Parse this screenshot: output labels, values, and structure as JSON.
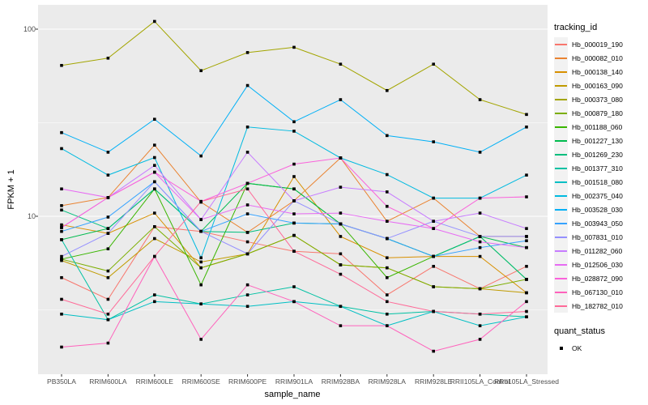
{
  "chart_data": {
    "type": "line",
    "title": "",
    "xlabel": "sample_name",
    "ylabel": "FPKM + 1",
    "y_scale": "log10",
    "y_tick_labels": [
      "100",
      "10"
    ],
    "y_tick_values": [
      100,
      10
    ],
    "y_minor_values": [
      31.623,
      3.1623
    ],
    "ylim": [
      1.7,
      130
    ],
    "grid": true,
    "panel_bg": "#EBEBEB",
    "grid_color": "#FFFFFF",
    "point_marker": "black-square",
    "legend_title": "tracking_id",
    "legend_position": "right",
    "categories": [
      "PB350LA",
      "RRIM600LA",
      "RRIM600LE",
      "RRIM600SE",
      "RRIM600PE",
      "RRIM901LA",
      "RRIM928BA",
      "RRIM928LA",
      "RRIM928LE",
      "RRII105LA_Control",
      "RRII105LA_Stressed"
    ],
    "series": [
      {
        "name": "Hb_000019_190",
        "color": "#F8766D",
        "values": [
          4.7,
          3.6,
          8.8,
          8.3,
          7.3,
          6.5,
          6.3,
          3.8,
          5.4,
          4.1,
          5.4
        ]
      },
      {
        "name": "Hb_000082_010",
        "color": "#EA8331",
        "values": [
          11.4,
          12.6,
          24,
          11.9,
          8.2,
          12.1,
          20.5,
          9.4,
          12.5,
          7.8,
          7.8
        ]
      },
      {
        "name": "Hb_000138_140",
        "color": "#D89000",
        "values": [
          9.0,
          8.1,
          10.4,
          5.3,
          6.3,
          16.3,
          7.8,
          6.0,
          6.1,
          6.1,
          3.9
        ]
      },
      {
        "name": "Hb_000163_090",
        "color": "#C09B00",
        "values": [
          5.8,
          4.7,
          7.6,
          5.7,
          6.3,
          7.9,
          5.5,
          5.3,
          4.2,
          4.1,
          3.9
        ]
      },
      {
        "name": "Hb_000373_080",
        "color": "#A3A500",
        "values": [
          64,
          70,
          110,
          60,
          75,
          80,
          65,
          47,
          65,
          42,
          35
        ]
      },
      {
        "name": "Hb_000879_180",
        "color": "#7CAE00",
        "values": [
          5.9,
          5.1,
          8.8,
          5.3,
          6.3,
          7.9,
          5.5,
          5.3,
          4.2,
          4.1,
          4.6
        ]
      },
      {
        "name": "Hb_001188_060",
        "color": "#39B600",
        "values": [
          5.9,
          6.7,
          14,
          4.3,
          15,
          14,
          9.1,
          4.7,
          6.1,
          7.8,
          4.6
        ]
      },
      {
        "name": "Hb_001227_130",
        "color": "#00BB4E",
        "values": [
          7.5,
          8.6,
          14,
          8.3,
          15,
          14,
          9.1,
          7.6,
          6.1,
          7.8,
          6.8
        ]
      },
      {
        "name": "Hb_001269_230",
        "color": "#00BF7D",
        "values": [
          10.8,
          8.6,
          14,
          8.3,
          8.2,
          9.2,
          9.1,
          7.6,
          6.1,
          7.8,
          4.6
        ]
      },
      {
        "name": "Hb_001377_310",
        "color": "#00C1A3",
        "values": [
          7.5,
          2.8,
          3.8,
          3.4,
          3.8,
          4.2,
          3.3,
          3.0,
          3.1,
          3.0,
          2.9
        ]
      },
      {
        "name": "Hb_001518_080",
        "color": "#00BFC4",
        "values": [
          3.0,
          2.8,
          3.5,
          3.4,
          3.3,
          3.5,
          3.3,
          2.6,
          3.1,
          2.6,
          2.9
        ]
      },
      {
        "name": "Hb_002375_040",
        "color": "#00BAE0",
        "values": [
          23,
          16.6,
          20.6,
          6.0,
          30,
          28.5,
          20.5,
          16.7,
          12.5,
          12.5,
          16.6
        ]
      },
      {
        "name": "Hb_003528_030",
        "color": "#00B0F6",
        "values": [
          28,
          22,
          33,
          21,
          50,
          32,
          42,
          27,
          25,
          22,
          30
        ]
      },
      {
        "name": "Hb_003943_050",
        "color": "#35A2FF",
        "values": [
          8.3,
          9.9,
          15.3,
          8.3,
          10.3,
          9.2,
          9.1,
          7.6,
          6.1,
          6.8,
          7.4
        ]
      },
      {
        "name": "Hb_007831_010",
        "color": "#9590FF",
        "values": [
          6.1,
          8.1,
          15.3,
          8.3,
          6.3,
          12.1,
          9.1,
          7.6,
          9.4,
          7.8,
          7.8
        ]
      },
      {
        "name": "Hb_011282_060",
        "color": "#C77CFF",
        "values": [
          8.7,
          12.6,
          18.7,
          9.6,
          22,
          12.1,
          14.3,
          13.5,
          9.4,
          10.4,
          8.6
        ]
      },
      {
        "name": "Hb_012506_030",
        "color": "#E76BF3",
        "values": [
          14,
          12.6,
          17.2,
          9.6,
          11.5,
          10.3,
          10.4,
          9.4,
          8.6,
          7.3,
          6.8
        ]
      },
      {
        "name": "Hb_028872_090",
        "color": "#FA62DB",
        "values": [
          8.7,
          12.6,
          17.2,
          12,
          15,
          19,
          20.5,
          11.3,
          8.6,
          12.5,
          12.7
        ]
      },
      {
        "name": "Hb_067130_010",
        "color": "#FF62BC",
        "values": [
          2.0,
          2.1,
          6.1,
          2.2,
          4.3,
          3.5,
          2.6,
          2.6,
          1.9,
          2.2,
          3.5
        ]
      },
      {
        "name": "Hb_182782_010",
        "color": "#FF6A98",
        "values": [
          3.6,
          3.0,
          6.1,
          12,
          14,
          6.5,
          4.9,
          3.5,
          3.1,
          3.0,
          3.1
        ]
      }
    ],
    "quant_legend": {
      "title": "quant_status",
      "items": [
        {
          "label": "OK",
          "marker": "black-square"
        }
      ]
    }
  }
}
